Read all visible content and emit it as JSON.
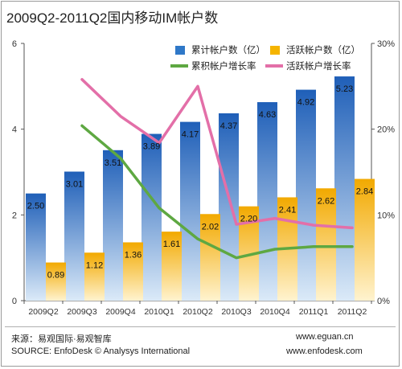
{
  "chart_data": {
    "type": "bar",
    "title": "2009Q2-2011Q2国内移动IM帐户数",
    "categories": [
      "2009Q2",
      "2009Q3",
      "2009Q4",
      "2010Q1",
      "2010Q2",
      "2010Q3",
      "2010Q4",
      "2011Q1",
      "2011Q2"
    ],
    "series": [
      {
        "name": "累计帐户数（亿）",
        "kind": "bar",
        "axis": "left",
        "color": "#2f78c8",
        "values": [
          2.5,
          3.01,
          3.51,
          3.89,
          4.17,
          4.37,
          4.63,
          4.92,
          5.23
        ]
      },
      {
        "name": "活跃帐户数（亿）",
        "kind": "bar",
        "axis": "left",
        "color": "#f5b400",
        "values": [
          0.89,
          1.12,
          1.36,
          1.61,
          2.02,
          2.2,
          2.41,
          2.62,
          2.84
        ]
      },
      {
        "name": "累积帐户增长率",
        "kind": "line",
        "axis": "right",
        "color": "#5ea842",
        "values": [
          null,
          20.4,
          16.6,
          10.8,
          7.2,
          5.0,
          6.0,
          6.3,
          6.3
        ]
      },
      {
        "name": "活跃帐户增长率",
        "kind": "line",
        "axis": "right",
        "color": "#e36fa8",
        "values": [
          null,
          25.8,
          21.5,
          18.4,
          25.0,
          8.9,
          9.6,
          8.8,
          8.5
        ]
      }
    ],
    "y_left": {
      "min": 0,
      "max": 6,
      "ticks": [
        "0",
        "2",
        "4",
        "6"
      ]
    },
    "y_right": {
      "min": 0,
      "max": 30,
      "ticks": [
        "0%",
        "10%",
        "20%",
        "30%"
      ]
    },
    "legend_position": "top-right",
    "grid": false
  },
  "footer": {
    "source_cn": "来源：易观国际·易观智库",
    "source_en": "SOURCE: EnfoDesk © Analysys International",
    "url1": "www.eguan.cn",
    "url2": "www.enfodesk.com"
  }
}
